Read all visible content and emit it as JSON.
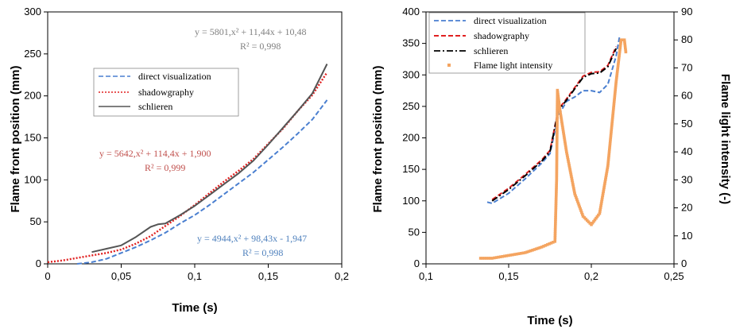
{
  "chart_data": [
    {
      "type": "line",
      "xlabel": "Time (s)",
      "ylabel": "Flame front position (mm)",
      "xlim": [
        0,
        0.2
      ],
      "ylim": [
        0,
        300
      ],
      "xticks": [
        "0",
        "0,05",
        "0,1",
        "0,15",
        "0,2"
      ],
      "yticks": [
        "0",
        "50",
        "100",
        "150",
        "200",
        "250",
        "300"
      ],
      "legend": {
        "placement": "center-left",
        "entries": [
          {
            "label": "direct visualization",
            "color": "#4a7fd0",
            "style": "dashed"
          },
          {
            "label": "shadowgraphy",
            "color": "#e02020",
            "style": "dotted"
          },
          {
            "label": "schlieren",
            "color": "#555555",
            "style": "solid"
          }
        ]
      },
      "annotations": [
        {
          "line1": "y = 5801,x² + 11,44x + 10,48",
          "line2": "R² = 0,998",
          "color": "#808080"
        },
        {
          "line1": "y = 5642,x² + 114,4x + 1,900",
          "line2": "R² = 0,999",
          "color": "#c0504d"
        },
        {
          "line1": "y = 4944,x² + 98,43x - 1,947",
          "line2": "R² = 0,998",
          "color": "#4f81bd"
        }
      ],
      "series": [
        {
          "name": "direct visualization",
          "color": "#4a7fd0",
          "x": [
            0.02,
            0.03,
            0.04,
            0.05,
            0.06,
            0.07,
            0.08,
            0.09,
            0.1,
            0.11,
            0.12,
            0.13,
            0.14,
            0.15,
            0.16,
            0.17,
            0.18,
            0.19
          ],
          "y": [
            0,
            2,
            6,
            13,
            20,
            28,
            37,
            48,
            58,
            70,
            83,
            96,
            109,
            124,
            139,
            155,
            172,
            195
          ]
        },
        {
          "name": "shadowgraphy",
          "color": "#e02020",
          "x": [
            0.0,
            0.01,
            0.02,
            0.03,
            0.04,
            0.05,
            0.06,
            0.07,
            0.08,
            0.09,
            0.1,
            0.11,
            0.12,
            0.13,
            0.14,
            0.15,
            0.16,
            0.17,
            0.18,
            0.19
          ],
          "y": [
            2,
            4,
            7,
            10,
            13,
            17,
            24,
            33,
            45,
            57,
            70,
            84,
            98,
            111,
            125,
            143,
            161,
            182,
            201,
            228
          ]
        },
        {
          "name": "schlieren",
          "color": "#555555",
          "x": [
            0.03,
            0.04,
            0.05,
            0.06,
            0.07,
            0.075,
            0.08,
            0.09,
            0.1,
            0.11,
            0.12,
            0.13,
            0.14,
            0.15,
            0.16,
            0.17,
            0.18,
            0.19
          ],
          "y": [
            14,
            18,
            22,
            32,
            44,
            47,
            48,
            58,
            69,
            82,
            95,
            108,
            123,
            142,
            162,
            182,
            203,
            238
          ]
        }
      ]
    },
    {
      "type": "line",
      "xlabel": "Time (s)",
      "ylabel": "Flame front position (mm)",
      "y2label": "Flame light intensity (-)",
      "xlim": [
        0.1,
        0.25
      ],
      "ylim": [
        0,
        400
      ],
      "y2lim": [
        0,
        90
      ],
      "xticks": [
        "0,1",
        "0,15",
        "0,2",
        "0,25"
      ],
      "yticks": [
        "0",
        "50",
        "100",
        "150",
        "200",
        "250",
        "300",
        "350",
        "400"
      ],
      "y2ticks": [
        "0",
        "10",
        "20",
        "30",
        "40",
        "50",
        "60",
        "70",
        "80",
        "90"
      ],
      "legend": {
        "placement": "top-left",
        "entries": [
          {
            "label": "direct visualization",
            "color": "#4a7fd0",
            "style": "dashed"
          },
          {
            "label": "shadowgraphy",
            "color": "#e02020",
            "style": "dashed"
          },
          {
            "label": "schlieren",
            "color": "#000000",
            "style": "dashdot"
          },
          {
            "label": "Flame light intensity",
            "color": "#f4a460",
            "style": "marker"
          }
        ]
      },
      "series": [
        {
          "name": "direct visualization",
          "color": "#4a7fd0",
          "axis": "left",
          "x": [
            0.137,
            0.14,
            0.15,
            0.16,
            0.17,
            0.175,
            0.18,
            0.185,
            0.19,
            0.195,
            0.2,
            0.205,
            0.21,
            0.215,
            0.217
          ],
          "y": [
            98,
            96,
            112,
            135,
            160,
            175,
            235,
            258,
            265,
            275,
            275,
            272,
            285,
            330,
            360
          ]
        },
        {
          "name": "shadowgraphy",
          "color": "#e02020",
          "axis": "left",
          "x": [
            0.14,
            0.15,
            0.16,
            0.17,
            0.175,
            0.18,
            0.185,
            0.19,
            0.195,
            0.2,
            0.205,
            0.21,
            0.215
          ],
          "y": [
            102,
            120,
            142,
            165,
            180,
            245,
            262,
            280,
            298,
            304,
            305,
            315,
            345
          ]
        },
        {
          "name": "schlieren",
          "color": "#000000",
          "axis": "left",
          "x": [
            0.14,
            0.15,
            0.16,
            0.17,
            0.175,
            0.18,
            0.185,
            0.19,
            0.195,
            0.2,
            0.205,
            0.21,
            0.215
          ],
          "y": [
            100,
            118,
            140,
            163,
            178,
            243,
            260,
            278,
            296,
            302,
            303,
            313,
            342
          ]
        },
        {
          "name": "Flame light intensity",
          "color": "#f4a460",
          "axis": "right",
          "x": [
            0.133,
            0.14,
            0.15,
            0.16,
            0.17,
            0.178,
            0.179,
            0.1795,
            0.181,
            0.185,
            0.19,
            0.195,
            0.2,
            0.205,
            0.21,
            0.215,
            0.218,
            0.22,
            0.221
          ],
          "y": [
            2,
            2,
            3,
            4,
            6,
            8,
            30,
            62,
            55,
            40,
            25,
            17,
            14,
            18,
            35,
            65,
            80,
            80,
            75
          ]
        }
      ]
    }
  ]
}
